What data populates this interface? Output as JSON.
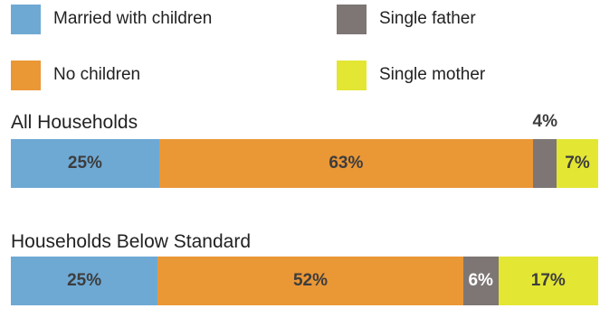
{
  "legend": [
    {
      "label": "Married with children",
      "color": "#6ea9d4"
    },
    {
      "label": "No children",
      "color": "#ea9736"
    },
    {
      "label": "Single father",
      "color": "#7d7674"
    },
    {
      "label": "Single mother",
      "color": "#e3e632"
    }
  ],
  "chart_data": [
    {
      "type": "bar",
      "orientation": "horizontal",
      "stacked": true,
      "title": "All Households",
      "legend_position": "top",
      "grid": false,
      "series": [
        {
          "name": "Married with children",
          "value": 25,
          "label": "25%",
          "color": "#6ea9d4"
        },
        {
          "name": "No children",
          "value": 63,
          "label": "63%",
          "color": "#ea9736"
        },
        {
          "name": "Single father",
          "value": 4,
          "label": "4%",
          "color": "#7d7674"
        },
        {
          "name": "Single mother",
          "value": 7,
          "label": "7%",
          "color": "#e3e632"
        }
      ]
    },
    {
      "type": "bar",
      "orientation": "horizontal",
      "stacked": true,
      "title": "Households Below Standard",
      "legend_position": "top",
      "grid": false,
      "series": [
        {
          "name": "Married with children",
          "value": 25,
          "label": "25%",
          "color": "#6ea9d4"
        },
        {
          "name": "No children",
          "value": 52,
          "label": "52%",
          "color": "#ea9736"
        },
        {
          "name": "Single father",
          "value": 6,
          "label": "6%",
          "color": "#7d7674"
        },
        {
          "name": "Single mother",
          "value": 17,
          "label": "17%",
          "color": "#e3e632"
        }
      ]
    }
  ]
}
